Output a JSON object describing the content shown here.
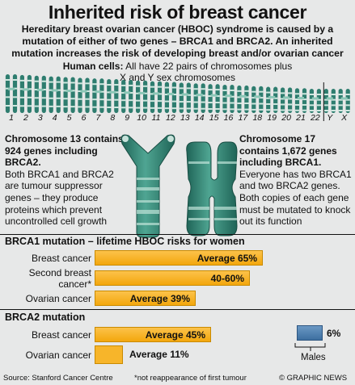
{
  "title": "Inherited risk of breast cancer",
  "intro": "Hereditary breast ovarian cancer (HBOC) syndrome is caused by a mutation of either of two genes – BRCA1 and BRCA2. An inherited mutation increases the risk of developing breast and/or ovarian cancer",
  "human_cells": {
    "label": "Human cells:",
    "text1": "All have 22 pairs of chromosomes plus",
    "text2": "X and Y sex chromosomes"
  },
  "chromosome_labels": [
    "1",
    "2",
    "3",
    "4",
    "5",
    "6",
    "7",
    "8",
    "9",
    "10",
    "11",
    "12",
    "13",
    "14",
    "15",
    "16",
    "17",
    "18",
    "19",
    "20",
    "21",
    "22",
    "Y",
    "X"
  ],
  "chromosome_colors": {
    "dark": "#2e7d6f",
    "light": "#8cc7b7",
    "band": "#cfe8e0"
  },
  "chromosome13": {
    "heading": "Chromosome 13 contains 924 genes including BRCA2.",
    "body": "Both BRCA1 and BRCA2 are tumour suppressor genes – they produce proteins which prevent uncontrolled cell growth"
  },
  "chromosome17": {
    "heading": "Chromosome 17 contains 1,672 genes including BRCA1.",
    "body": "Everyone has two BRCA1 and two BRCA2 genes. Both copies of each gene must be mutated to knock out its function"
  },
  "brca1": {
    "heading": "BRCA1 mutation – lifetime HBOC risks for women",
    "rows": [
      {
        "label": "Breast cancer",
        "value_label": "Average 65%"
      },
      {
        "label": "Second breast cancer*",
        "value_label": "40-60%"
      },
      {
        "label": "Ovarian cancer",
        "value_label": "Average 39%"
      }
    ]
  },
  "brca2": {
    "heading": "BRCA2 mutation",
    "rows": [
      {
        "label": "Breast cancer",
        "value_label": "Average 45%"
      },
      {
        "label": "Ovarian cancer",
        "value_label": "Average 11%"
      }
    ],
    "males": {
      "value_label": "6%",
      "label": "Males"
    }
  },
  "chart_data": {
    "type": "bar",
    "series": [
      {
        "name": "BRCA1 mutation – lifetime HBOC risks for women",
        "categories": [
          "Breast cancer",
          "Second breast cancer*",
          "Ovarian cancer"
        ],
        "values": [
          65,
          60,
          39
        ]
      },
      {
        "name": "BRCA2 mutation",
        "categories": [
          "Breast cancer",
          "Ovarian cancer"
        ],
        "values": [
          45,
          11
        ]
      },
      {
        "name": "Males",
        "categories": [
          "Breast cancer"
        ],
        "values": [
          6
        ]
      }
    ]
  },
  "colors": {
    "bar": "#f7b52a",
    "males_bar": "#4a7fb0",
    "background": "#e7e8e8"
  },
  "footer": {
    "source": "Source: Stanford Cancer Centre",
    "note": "*not reappearance of first tumour",
    "credit": "© GRAPHIC NEWS"
  }
}
